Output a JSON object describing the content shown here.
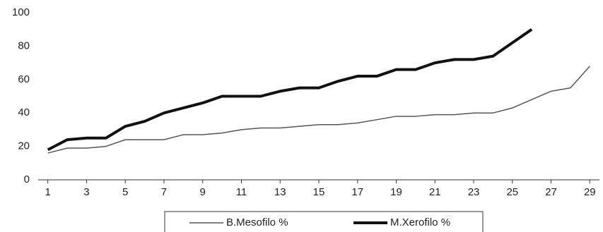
{
  "chart_data": {
    "type": "line",
    "x": [
      1,
      2,
      3,
      4,
      5,
      6,
      7,
      8,
      9,
      10,
      11,
      12,
      13,
      14,
      15,
      16,
      17,
      18,
      19,
      20,
      21,
      22,
      23,
      24,
      25,
      26,
      27,
      28,
      29
    ],
    "series": [
      {
        "name": "B.Mesofilo %",
        "color": "#555555",
        "line_width": 1.5,
        "values": [
          16,
          19,
          19,
          20,
          24,
          24,
          24,
          27,
          27,
          28,
          30,
          31,
          31,
          32,
          33,
          33,
          34,
          36,
          38,
          38,
          39,
          39,
          40,
          40,
          43,
          48,
          53,
          55,
          68
        ]
      },
      {
        "name": "M.Xerofilo %",
        "color": "#111111",
        "line_width": 4,
        "values": [
          18,
          24,
          25,
          25,
          32,
          35,
          40,
          43,
          46,
          50,
          50,
          50,
          53,
          55,
          55,
          59,
          62,
          62,
          66,
          66,
          70,
          72,
          72,
          74,
          82,
          90,
          null,
          null,
          null
        ]
      }
    ],
    "xlim": [
      0.5,
      29.5
    ],
    "xticks": [
      1,
      3,
      5,
      7,
      9,
      11,
      13,
      15,
      17,
      19,
      21,
      23,
      25,
      27,
      29
    ],
    "ylim": [
      0,
      100
    ],
    "yticks": [
      0,
      20,
      40,
      60,
      80,
      100
    ],
    "grid": false,
    "legend": "bottom"
  }
}
